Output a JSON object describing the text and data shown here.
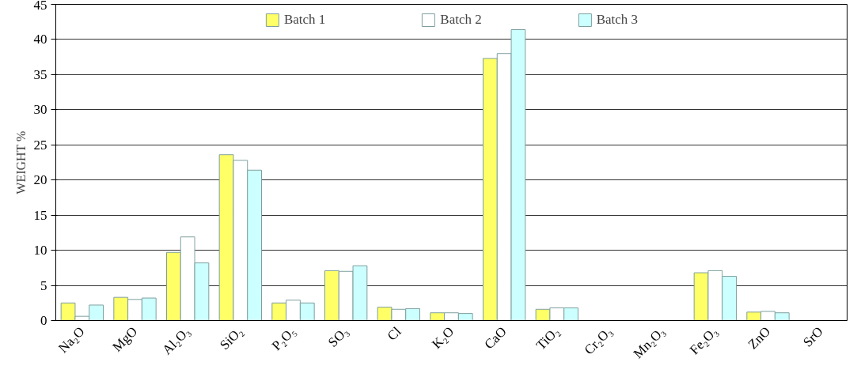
{
  "chart_data": {
    "type": "bar",
    "ylabel": "WEIGHT %",
    "categories": [
      "Na₂O",
      "MgO",
      "Al₂O₃",
      "SiO₂",
      "P₂O₅",
      "SO₃",
      "Cl",
      "K₂O",
      "CaO",
      "TiO₂",
      "Cr₂O₃",
      "Mn₂O₃",
      "Fe₂O₃",
      "ZnO",
      "SrO"
    ],
    "series": [
      {
        "name": "Batch 1",
        "color": "#ffff66",
        "values": [
          2.5,
          3.3,
          9.7,
          23.6,
          2.5,
          7.1,
          1.9,
          1.1,
          37.3,
          1.6,
          0,
          0,
          6.8,
          1.2,
          0
        ]
      },
      {
        "name": "Batch 2",
        "color": "#ffffff",
        "values": [
          0.6,
          3.0,
          11.9,
          22.8,
          2.9,
          7.0,
          1.6,
          1.1,
          38.0,
          1.8,
          0,
          0,
          7.1,
          1.3,
          0
        ]
      },
      {
        "name": "Batch 3",
        "color": "#ccffff",
        "values": [
          2.2,
          3.2,
          8.2,
          21.4,
          2.5,
          7.8,
          1.7,
          1.0,
          41.4,
          1.8,
          0,
          0,
          6.3,
          1.1,
          0
        ]
      }
    ],
    "ylim": [
      0,
      45
    ],
    "yticks": [
      0,
      5,
      10,
      15,
      20,
      25,
      30,
      35,
      40,
      45
    ],
    "grid": "y",
    "legend": "top"
  }
}
